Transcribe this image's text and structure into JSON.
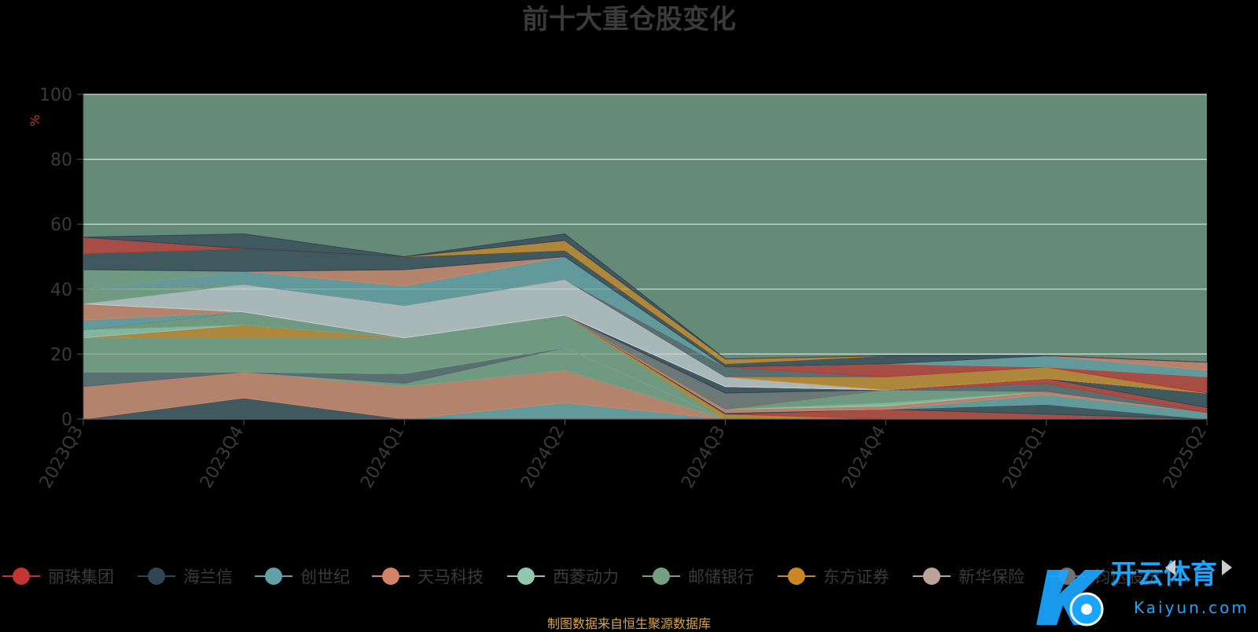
{
  "chart_data": {
    "type": "area",
    "title": "前十大重仓股变化",
    "ylabel": "%",
    "ylim": [
      0,
      100
    ],
    "yticks": [
      0,
      20,
      40,
      60,
      80,
      100
    ],
    "categories": [
      "2023Q3",
      "2023Q4",
      "2024Q1",
      "2024Q2",
      "2024Q3",
      "2024Q4",
      "2025Q1",
      "2025Q2"
    ],
    "grid": true,
    "series": [
      {
        "name": "丽珠集团",
        "color": "#c23531",
        "values": [
          0,
          0,
          0,
          0,
          0,
          0,
          0,
          0
        ]
      },
      {
        "name": "海兰信",
        "color": "#2f4554",
        "values": [
          0,
          6.5,
          0,
          0,
          0,
          0,
          0,
          0
        ]
      },
      {
        "name": "创世纪",
        "color": "#61a0a8",
        "values": [
          0,
          0,
          0,
          5.0,
          0,
          0,
          0,
          0
        ]
      },
      {
        "name": "天马科技",
        "color": "#d48265",
        "values": [
          10.0,
          8.0,
          10.0,
          10.0,
          0,
          0,
          0,
          0
        ]
      },
      {
        "name": "西菱动力",
        "color": "#91c7ae",
        "values": [
          0,
          0,
          0,
          0,
          0,
          0,
          0,
          0
        ]
      },
      {
        "name": "邮储银行",
        "color": "#749f83",
        "values": [
          0,
          0,
          1.0,
          7.0,
          0,
          0,
          0,
          0
        ]
      },
      {
        "name": "东方证券",
        "color": "#ca8622",
        "values": [
          0,
          0,
          0,
          0,
          0,
          0,
          0,
          0
        ]
      },
      {
        "name": "新华保险",
        "color": "#bda29a",
        "values": [
          0,
          0,
          0,
          0,
          0,
          0,
          0,
          0
        ]
      },
      {
        "name": "钧达股份",
        "color": "#6e7074",
        "values": [
          0,
          0,
          0,
          0,
          0,
          0,
          0,
          0
        ]
      },
      {
        "name": "",
        "color": "#546570",
        "values": [
          4.5,
          0,
          3.0,
          0,
          0,
          0,
          0,
          0
        ]
      },
      {
        "name": "",
        "color": "#c4ccd3",
        "values": [
          0,
          0,
          0,
          0,
          0,
          0,
          0,
          0
        ]
      },
      {
        "name": "",
        "color": "#749f83",
        "values": [
          10.5,
          10.5,
          11.0,
          10.0,
          0,
          0,
          0,
          0
        ]
      },
      {
        "name": "",
        "color": "#ca8622",
        "values": [
          0,
          4.0,
          0,
          0,
          1.5,
          0,
          0,
          0
        ]
      },
      {
        "name": "",
        "color": "#c23531",
        "values": [
          0,
          0,
          0,
          0,
          0,
          3.0,
          1.5,
          0
        ]
      },
      {
        "name": "",
        "color": "#2f4554",
        "values": [
          0,
          0,
          0,
          0,
          0.5,
          0,
          3.0,
          0
        ]
      },
      {
        "name": "",
        "color": "#61a0a8",
        "values": [
          0,
          0,
          0,
          0,
          0,
          0,
          3.0,
          2.0
        ]
      },
      {
        "name": "",
        "color": "#d48265",
        "values": [
          0,
          0,
          0,
          0,
          1.0,
          1.0,
          1.0,
          0
        ]
      },
      {
        "name": "",
        "color": "#91c7ae",
        "values": [
          2.5,
          0,
          0,
          0,
          0,
          1.0,
          0,
          0
        ]
      },
      {
        "name": "",
        "color": "#749f83",
        "values": [
          0,
          4.0,
          0,
          0,
          0,
          4.0,
          0,
          0
        ]
      },
      {
        "name": "",
        "color": "#ca8622",
        "values": [
          0,
          0,
          0,
          0,
          0,
          0,
          0,
          0
        ]
      },
      {
        "name": "",
        "color": "#6e7074",
        "values": [
          0,
          0,
          0,
          0,
          5.0,
          0,
          0,
          0
        ]
      },
      {
        "name": "",
        "color": "#546570",
        "values": [
          0,
          0,
          0,
          0,
          0,
          0,
          2.5,
          0
        ]
      },
      {
        "name": "",
        "color": "#c23531",
        "values": [
          0,
          0,
          0,
          0,
          0,
          0,
          1.5,
          1.5
        ]
      },
      {
        "name": "",
        "color": "#2f4554",
        "values": [
          0,
          0,
          0,
          0,
          2.0,
          0,
          0,
          4.5
        ]
      },
      {
        "name": "",
        "color": "#61a0a8",
        "values": [
          3.0,
          0,
          0,
          0,
          0,
          0,
          0,
          0
        ]
      },
      {
        "name": "",
        "color": "#d48265",
        "values": [
          5.0,
          0,
          0,
          0,
          0,
          0,
          0,
          0
        ]
      },
      {
        "name": "",
        "color": "#91c7ae",
        "values": [
          0,
          0,
          0,
          0,
          0,
          0,
          0,
          0
        ]
      },
      {
        "name": "",
        "color": "#c4ccd3",
        "values": [
          0,
          8.5,
          10.0,
          11.0,
          3.0,
          0,
          0,
          0
        ]
      },
      {
        "name": "",
        "color": "#749f83",
        "values": [
          4.5,
          0,
          0,
          0,
          0,
          0,
          0,
          0
        ]
      },
      {
        "name": "",
        "color": "#ca8622",
        "values": [
          0,
          0,
          0,
          0,
          0,
          4.0,
          3.5,
          0
        ]
      },
      {
        "name": "",
        "color": "#546570",
        "values": [
          0,
          0,
          0,
          0,
          3.0,
          0,
          0,
          0
        ]
      },
      {
        "name": "",
        "color": "#c23531",
        "values": [
          0,
          0,
          0,
          0,
          0,
          4.0,
          0,
          5.0
        ]
      },
      {
        "name": "",
        "color": "#61a0a8",
        "values": [
          0,
          4.0,
          6.0,
          7.0,
          0,
          0,
          3.5,
          2.0
        ]
      },
      {
        "name": "",
        "color": "#d48265",
        "values": [
          0,
          0,
          5.0,
          0,
          0,
          0,
          0,
          2.5
        ]
      },
      {
        "name": "",
        "color": "#749f83",
        "values": [
          6.0,
          0,
          0,
          0,
          0,
          0,
          0,
          0
        ]
      },
      {
        "name": "",
        "color": "#2f4554",
        "values": [
          5.0,
          7.0,
          4.0,
          2.0,
          1.0,
          2.5,
          0,
          0
        ]
      },
      {
        "name": "",
        "color": "#ca8622",
        "values": [
          0,
          0,
          0,
          3.0,
          1.5,
          0,
          0,
          0
        ]
      },
      {
        "name": "",
        "color": "#c23531",
        "values": [
          5.0,
          0,
          0,
          0,
          0,
          0,
          0,
          0
        ]
      },
      {
        "name": "",
        "color": "#2f4554",
        "values": [
          0,
          4.5,
          0,
          2.0,
          0,
          0,
          0,
          0
        ]
      }
    ],
    "legend_position": "bottom"
  },
  "source_note": "制图数据来自恒生聚源数据库",
  "watermark": {
    "brand": "开云体育",
    "domain": "Kaiyun.com"
  },
  "colors": {
    "plot_bg": "#658a78",
    "axis_text": "#3a3a3a",
    "title": "#3a3a3a",
    "ylabel": "#c23531",
    "source_note": "#d9a54a",
    "watermark": "#1aa6ff"
  }
}
